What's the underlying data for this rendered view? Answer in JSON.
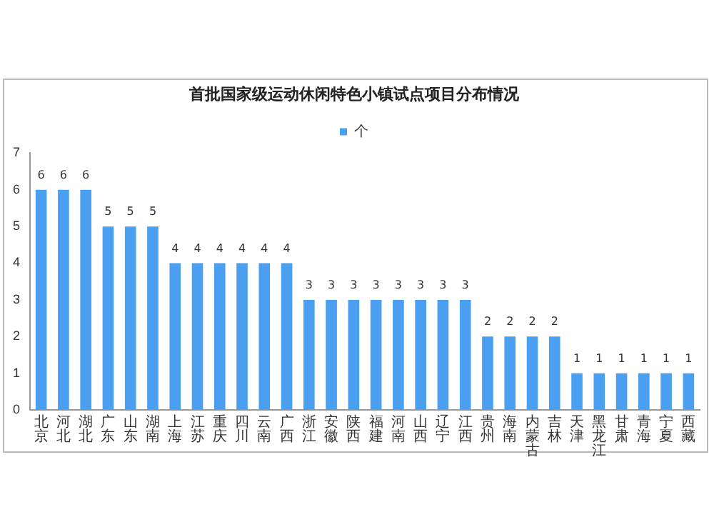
{
  "chart_data": {
    "type": "bar",
    "title": "首批国家级运动休闲特色小镇试点项目分布情况",
    "categories": [
      "北京",
      "河北",
      "湖北",
      "广东",
      "山东",
      "湖南",
      "上海",
      "江苏",
      "重庆",
      "四川",
      "云南",
      "广西",
      "浙江",
      "安徽",
      "陕西",
      "福建",
      "河南",
      "山西",
      "辽宁",
      "江西",
      "贵州",
      "海南",
      "内蒙古",
      "吉林",
      "天津",
      "黑龙江",
      "甘肃",
      "青海",
      "宁夏",
      "西藏"
    ],
    "series": [
      {
        "name": "个",
        "color": "#4a9ff0",
        "values": [
          6,
          6,
          6,
          5,
          5,
          5,
          4,
          4,
          4,
          4,
          4,
          4,
          3,
          3,
          3,
          3,
          3,
          3,
          3,
          3,
          2,
          2,
          2,
          2,
          1,
          1,
          1,
          1,
          1,
          1
        ]
      }
    ],
    "ylim": [
      0,
      7
    ],
    "yticks": [
      0,
      1,
      2,
      3,
      4,
      5,
      6,
      7
    ],
    "grid": false,
    "legend": "top",
    "data_labels": true
  }
}
